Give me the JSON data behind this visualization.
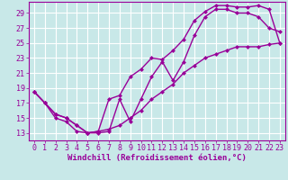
{
  "background_color": "#c8e8e8",
  "grid_color": "#ffffff",
  "line_color": "#990099",
  "marker": "D",
  "markersize": 2.5,
  "linewidth": 1.0,
  "xlabel": "Windchill (Refroidissement éolien,°C)",
  "xlabel_fontsize": 6.5,
  "tick_fontsize": 6.0,
  "xlim": [
    -0.5,
    23.5
  ],
  "ylim": [
    12.0,
    30.5
  ],
  "yticks": [
    13,
    15,
    17,
    19,
    21,
    23,
    25,
    27,
    29
  ],
  "xticks": [
    0,
    1,
    2,
    3,
    4,
    5,
    6,
    7,
    8,
    9,
    10,
    11,
    12,
    13,
    14,
    15,
    16,
    17,
    18,
    19,
    20,
    21,
    22,
    23
  ],
  "line1_x": [
    0,
    1,
    2,
    3,
    4,
    5,
    6,
    7,
    8,
    9,
    10,
    11,
    12,
    13,
    14,
    15,
    16,
    17,
    18,
    19,
    20,
    21,
    22,
    23
  ],
  "line1_y": [
    18.5,
    17.0,
    15.5,
    15.0,
    14.0,
    13.0,
    13.2,
    17.5,
    18.0,
    20.5,
    21.5,
    23.0,
    22.8,
    24.0,
    25.5,
    28.0,
    29.2,
    30.0,
    30.0,
    29.8,
    29.8,
    30.0,
    29.5,
    25.0
  ],
  "line2_x": [
    0,
    1,
    2,
    3,
    4,
    5,
    6,
    7,
    8,
    9,
    10,
    11,
    12,
    13,
    14,
    15,
    16,
    17,
    18,
    19,
    20,
    21,
    22,
    23
  ],
  "line2_y": [
    18.5,
    17.0,
    15.0,
    14.5,
    13.2,
    13.0,
    13.0,
    13.2,
    17.5,
    14.5,
    17.5,
    20.5,
    22.5,
    20.0,
    22.5,
    26.0,
    28.5,
    29.5,
    29.5,
    29.0,
    29.0,
    28.5,
    27.0,
    26.5
  ],
  "line3_x": [
    0,
    1,
    2,
    3,
    4,
    5,
    6,
    7,
    8,
    9,
    10,
    11,
    12,
    13,
    14,
    15,
    16,
    17,
    18,
    19,
    20,
    21,
    22,
    23
  ],
  "line3_y": [
    18.5,
    17.0,
    15.5,
    15.0,
    14.0,
    13.0,
    13.2,
    13.5,
    14.0,
    15.0,
    16.0,
    17.5,
    18.5,
    19.5,
    21.0,
    22.0,
    23.0,
    23.5,
    24.0,
    24.5,
    24.5,
    24.5,
    24.8,
    25.0
  ]
}
